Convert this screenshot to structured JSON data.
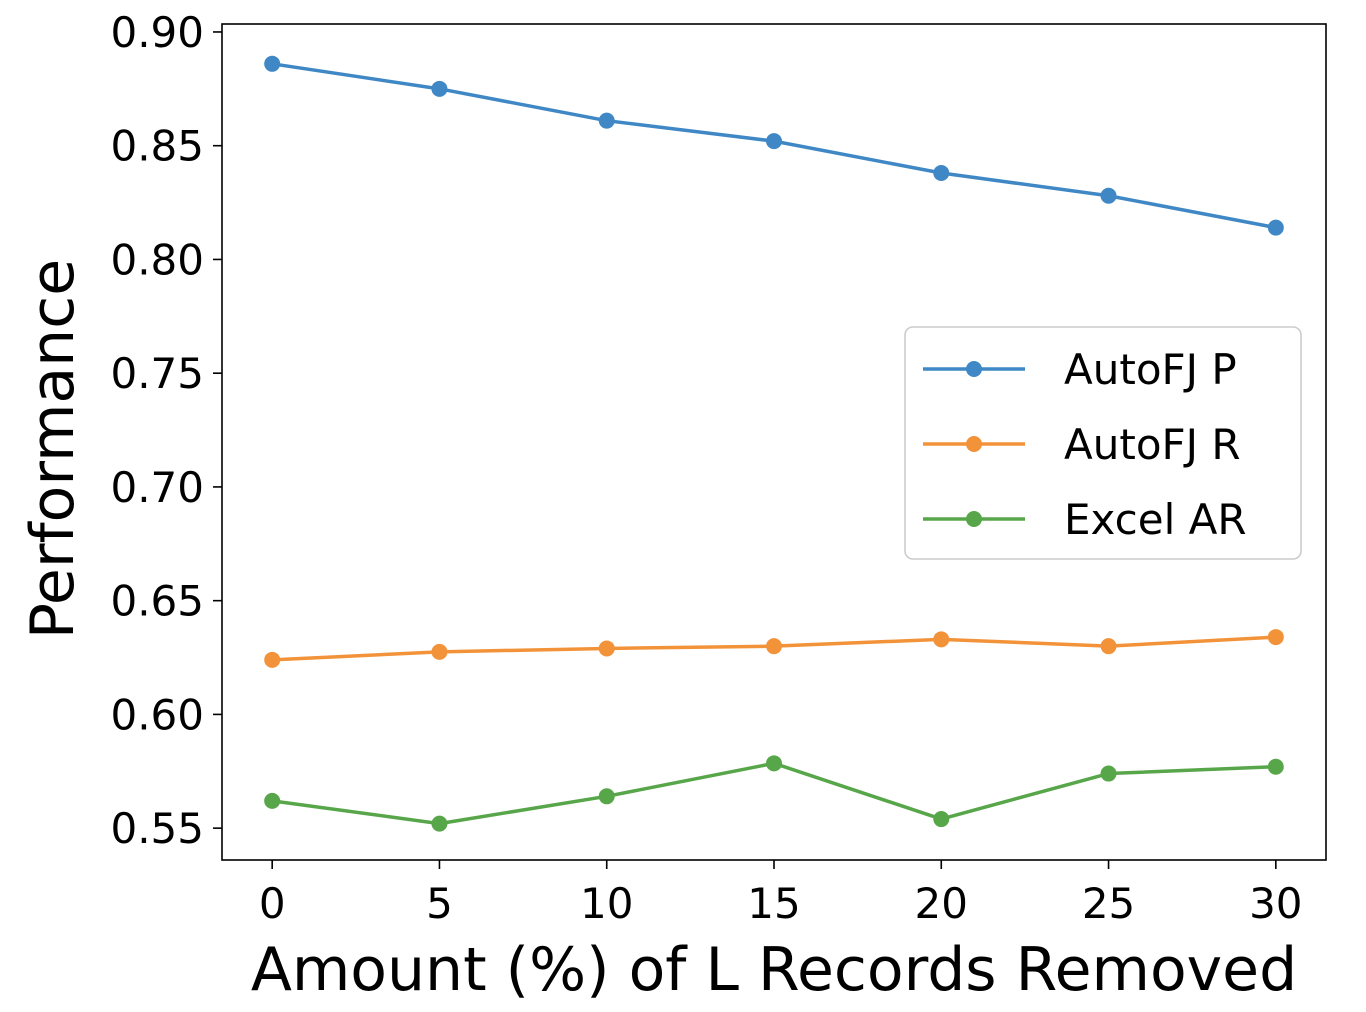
{
  "chart_data": {
    "type": "line",
    "title": "",
    "xlabel": "Amount (%) of L Records Removed",
    "ylabel": "Performance",
    "x": [
      0,
      5,
      10,
      15,
      20,
      25,
      30
    ],
    "xlim": [
      -1.5,
      31.5
    ],
    "ylim": [
      0.536,
      0.9035
    ],
    "xticks": [
      0,
      5,
      10,
      15,
      20,
      25,
      30
    ],
    "yticks": [
      "0.55",
      "0.60",
      "0.65",
      "0.70",
      "0.75",
      "0.80",
      "0.85",
      "0.90"
    ],
    "grid": false,
    "legend_position": "center-right",
    "series": [
      {
        "name": "AutoFJ P",
        "color": "#3f88c5",
        "values": [
          0.886,
          0.875,
          0.861,
          0.852,
          0.838,
          0.828,
          0.814
        ]
      },
      {
        "name": "AutoFJ R",
        "color": "#f2933a",
        "values": [
          0.624,
          0.6275,
          0.629,
          0.63,
          0.633,
          0.63,
          0.634
        ]
      },
      {
        "name": "Excel AR",
        "color": "#58a64a",
        "values": [
          0.562,
          0.552,
          0.564,
          0.5785,
          0.554,
          0.574,
          0.577
        ]
      }
    ]
  }
}
